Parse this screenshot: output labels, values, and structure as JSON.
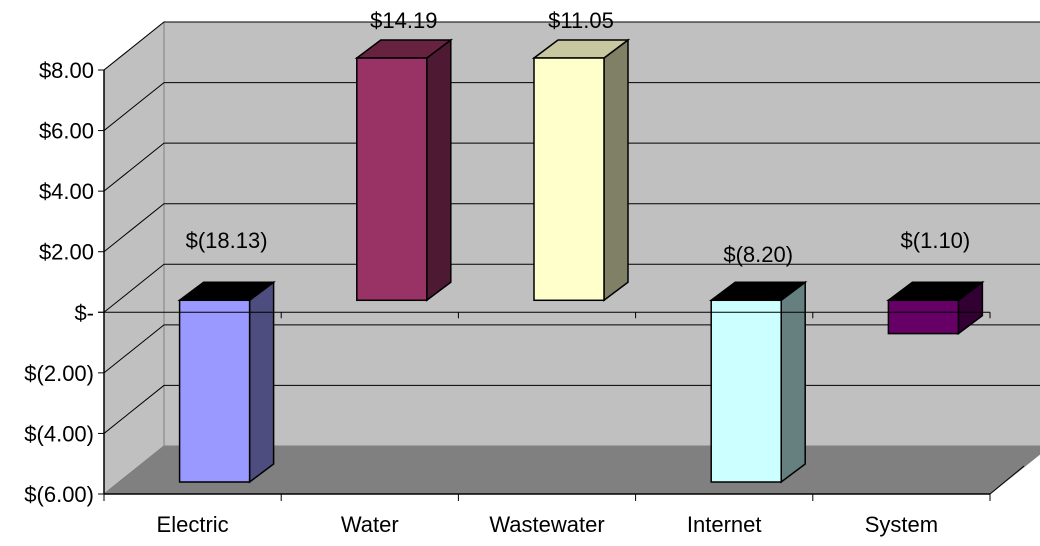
{
  "chart_data": {
    "type": "bar",
    "title": "",
    "xlabel": "",
    "ylabel": "",
    "categories": [
      "Electric",
      "Water",
      "Wastewater",
      "Internet",
      "System"
    ],
    "values": [
      -18.13,
      14.19,
      11.05,
      -8.2,
      -1.1
    ],
    "data_labels": [
      "$(18.13)",
      "$14.19",
      "$11.05",
      "$(8.20)",
      "$(1.10)"
    ],
    "ylim": [
      -6,
      8
    ],
    "yticks": [
      8,
      6,
      4,
      2,
      0,
      -2,
      -4,
      -6
    ],
    "ytick_labels": [
      "$8.00",
      "$6.00",
      "$4.00",
      "$2.00",
      "$-",
      "$(2.00)",
      "$(4.00)",
      "$(6.00)"
    ],
    "grid": true,
    "legend": "none",
    "style": "3d-column",
    "colors": {
      "wall": "#c0c0c0",
      "floor": "#808080",
      "bar_fronts": [
        "#9999ff",
        "#993366",
        "#ffffcc",
        "#ccffff",
        "#660066"
      ],
      "bar_sides": [
        "#4d4d80",
        "#4d1933",
        "#808066",
        "#668080",
        "#330033"
      ],
      "bar_tops": [
        "#000000",
        "#66223f",
        "#c8c8a0",
        "#000000",
        "#000000"
      ]
    }
  }
}
